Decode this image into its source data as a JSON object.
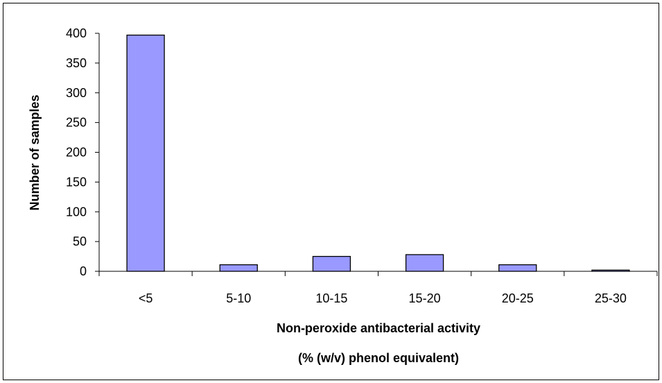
{
  "chart_data": {
    "type": "bar",
    "categories": [
      "<5",
      "5-10",
      "10-15",
      "15-20",
      "20-25",
      "25-30"
    ],
    "series": [
      {
        "values": [
          397,
          11,
          25,
          28,
          11,
          2
        ]
      }
    ],
    "title": "",
    "xlabel_lines": [
      "Non-peroxide antibacterial activity",
      "(% (w/v) phenol equivalent)"
    ],
    "ylabel": "Number of samples",
    "ylim": [
      0,
      400
    ],
    "yticks": [
      "0",
      "50",
      "100",
      "150",
      "200",
      "250",
      "300",
      "350",
      "400"
    ],
    "grid": false,
    "legend": "none",
    "colors": {
      "bar_fill": "#9999ff",
      "bar_stroke": "#000000",
      "axis": "#000000"
    }
  }
}
